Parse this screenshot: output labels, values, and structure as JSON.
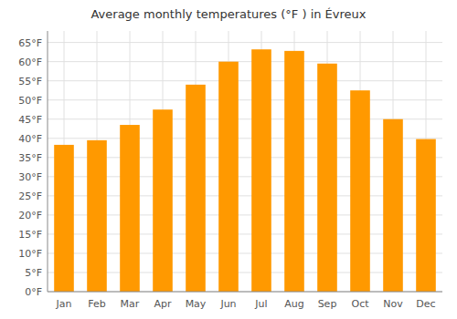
{
  "chart_data": {
    "type": "bar",
    "title": "Average monthly temperatures (°F ) in Évreux",
    "categories": [
      "Jan",
      "Feb",
      "Mar",
      "Apr",
      "May",
      "Jun",
      "Jul",
      "Aug",
      "Sep",
      "Oct",
      "Nov",
      "Dec"
    ],
    "values": [
      38.3,
      39.5,
      43.5,
      47.5,
      54.0,
      60.0,
      63.2,
      62.8,
      59.5,
      52.5,
      45.0,
      39.8
    ],
    "color": "#FF9900",
    "ylim": [
      0,
      68
    ],
    "yticks": [
      {
        "value": 0,
        "label": "0°F"
      },
      {
        "value": 5,
        "label": "5°F"
      },
      {
        "value": 10,
        "label": "10°F"
      },
      {
        "value": 15,
        "label": "15°F"
      },
      {
        "value": 20,
        "label": "20°F"
      },
      {
        "value": 25,
        "label": "25°F"
      },
      {
        "value": 30,
        "label": "30°F"
      },
      {
        "value": 35,
        "label": "35°F"
      },
      {
        "value": 40,
        "label": "40°F"
      },
      {
        "value": 45,
        "label": "45°F"
      },
      {
        "value": 50,
        "label": "50°F"
      },
      {
        "value": 55,
        "label": "55°F"
      },
      {
        "value": 60,
        "label": "60°F"
      },
      {
        "value": 65,
        "label": "65°F"
      }
    ],
    "grid": true
  }
}
